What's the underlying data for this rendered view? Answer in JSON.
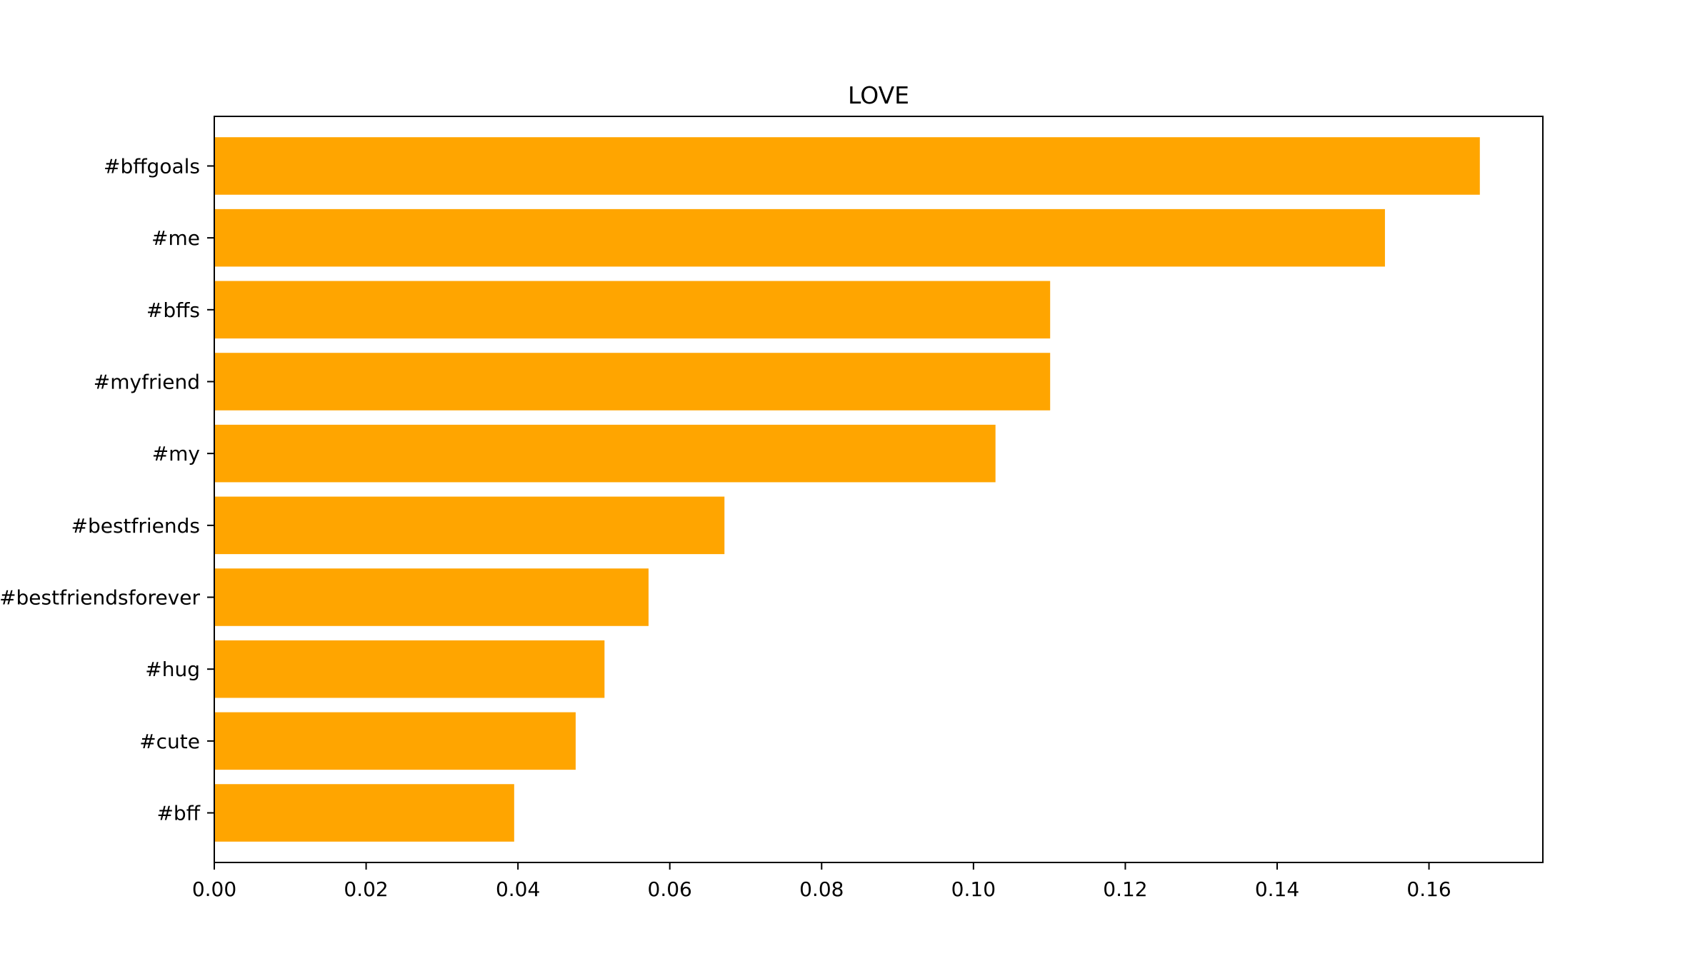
{
  "chart_data": {
    "type": "bar",
    "orientation": "horizontal",
    "title": "LOVE",
    "xlabel": "",
    "ylabel": "",
    "categories": [
      "#bffgoals",
      "#me",
      "#bffs",
      "#myfriend",
      "#my",
      "#bestfriends",
      "#bestfriendsforever",
      "#hug",
      "#cute",
      "#bff"
    ],
    "values": [
      0.1667,
      0.1542,
      0.1101,
      0.1101,
      0.1029,
      0.0672,
      0.0572,
      0.0514,
      0.0476,
      0.0395
    ],
    "xlim": [
      0,
      0.175
    ],
    "xticks": [
      0.0,
      0.02,
      0.04,
      0.06,
      0.08,
      0.1,
      0.12,
      0.14,
      0.16
    ],
    "xtick_labels": [
      "0.00",
      "0.02",
      "0.04",
      "0.06",
      "0.08",
      "0.10",
      "0.12",
      "0.14",
      "0.16"
    ],
    "bar_color": "#ffa500",
    "grid": false,
    "legend": "none"
  }
}
